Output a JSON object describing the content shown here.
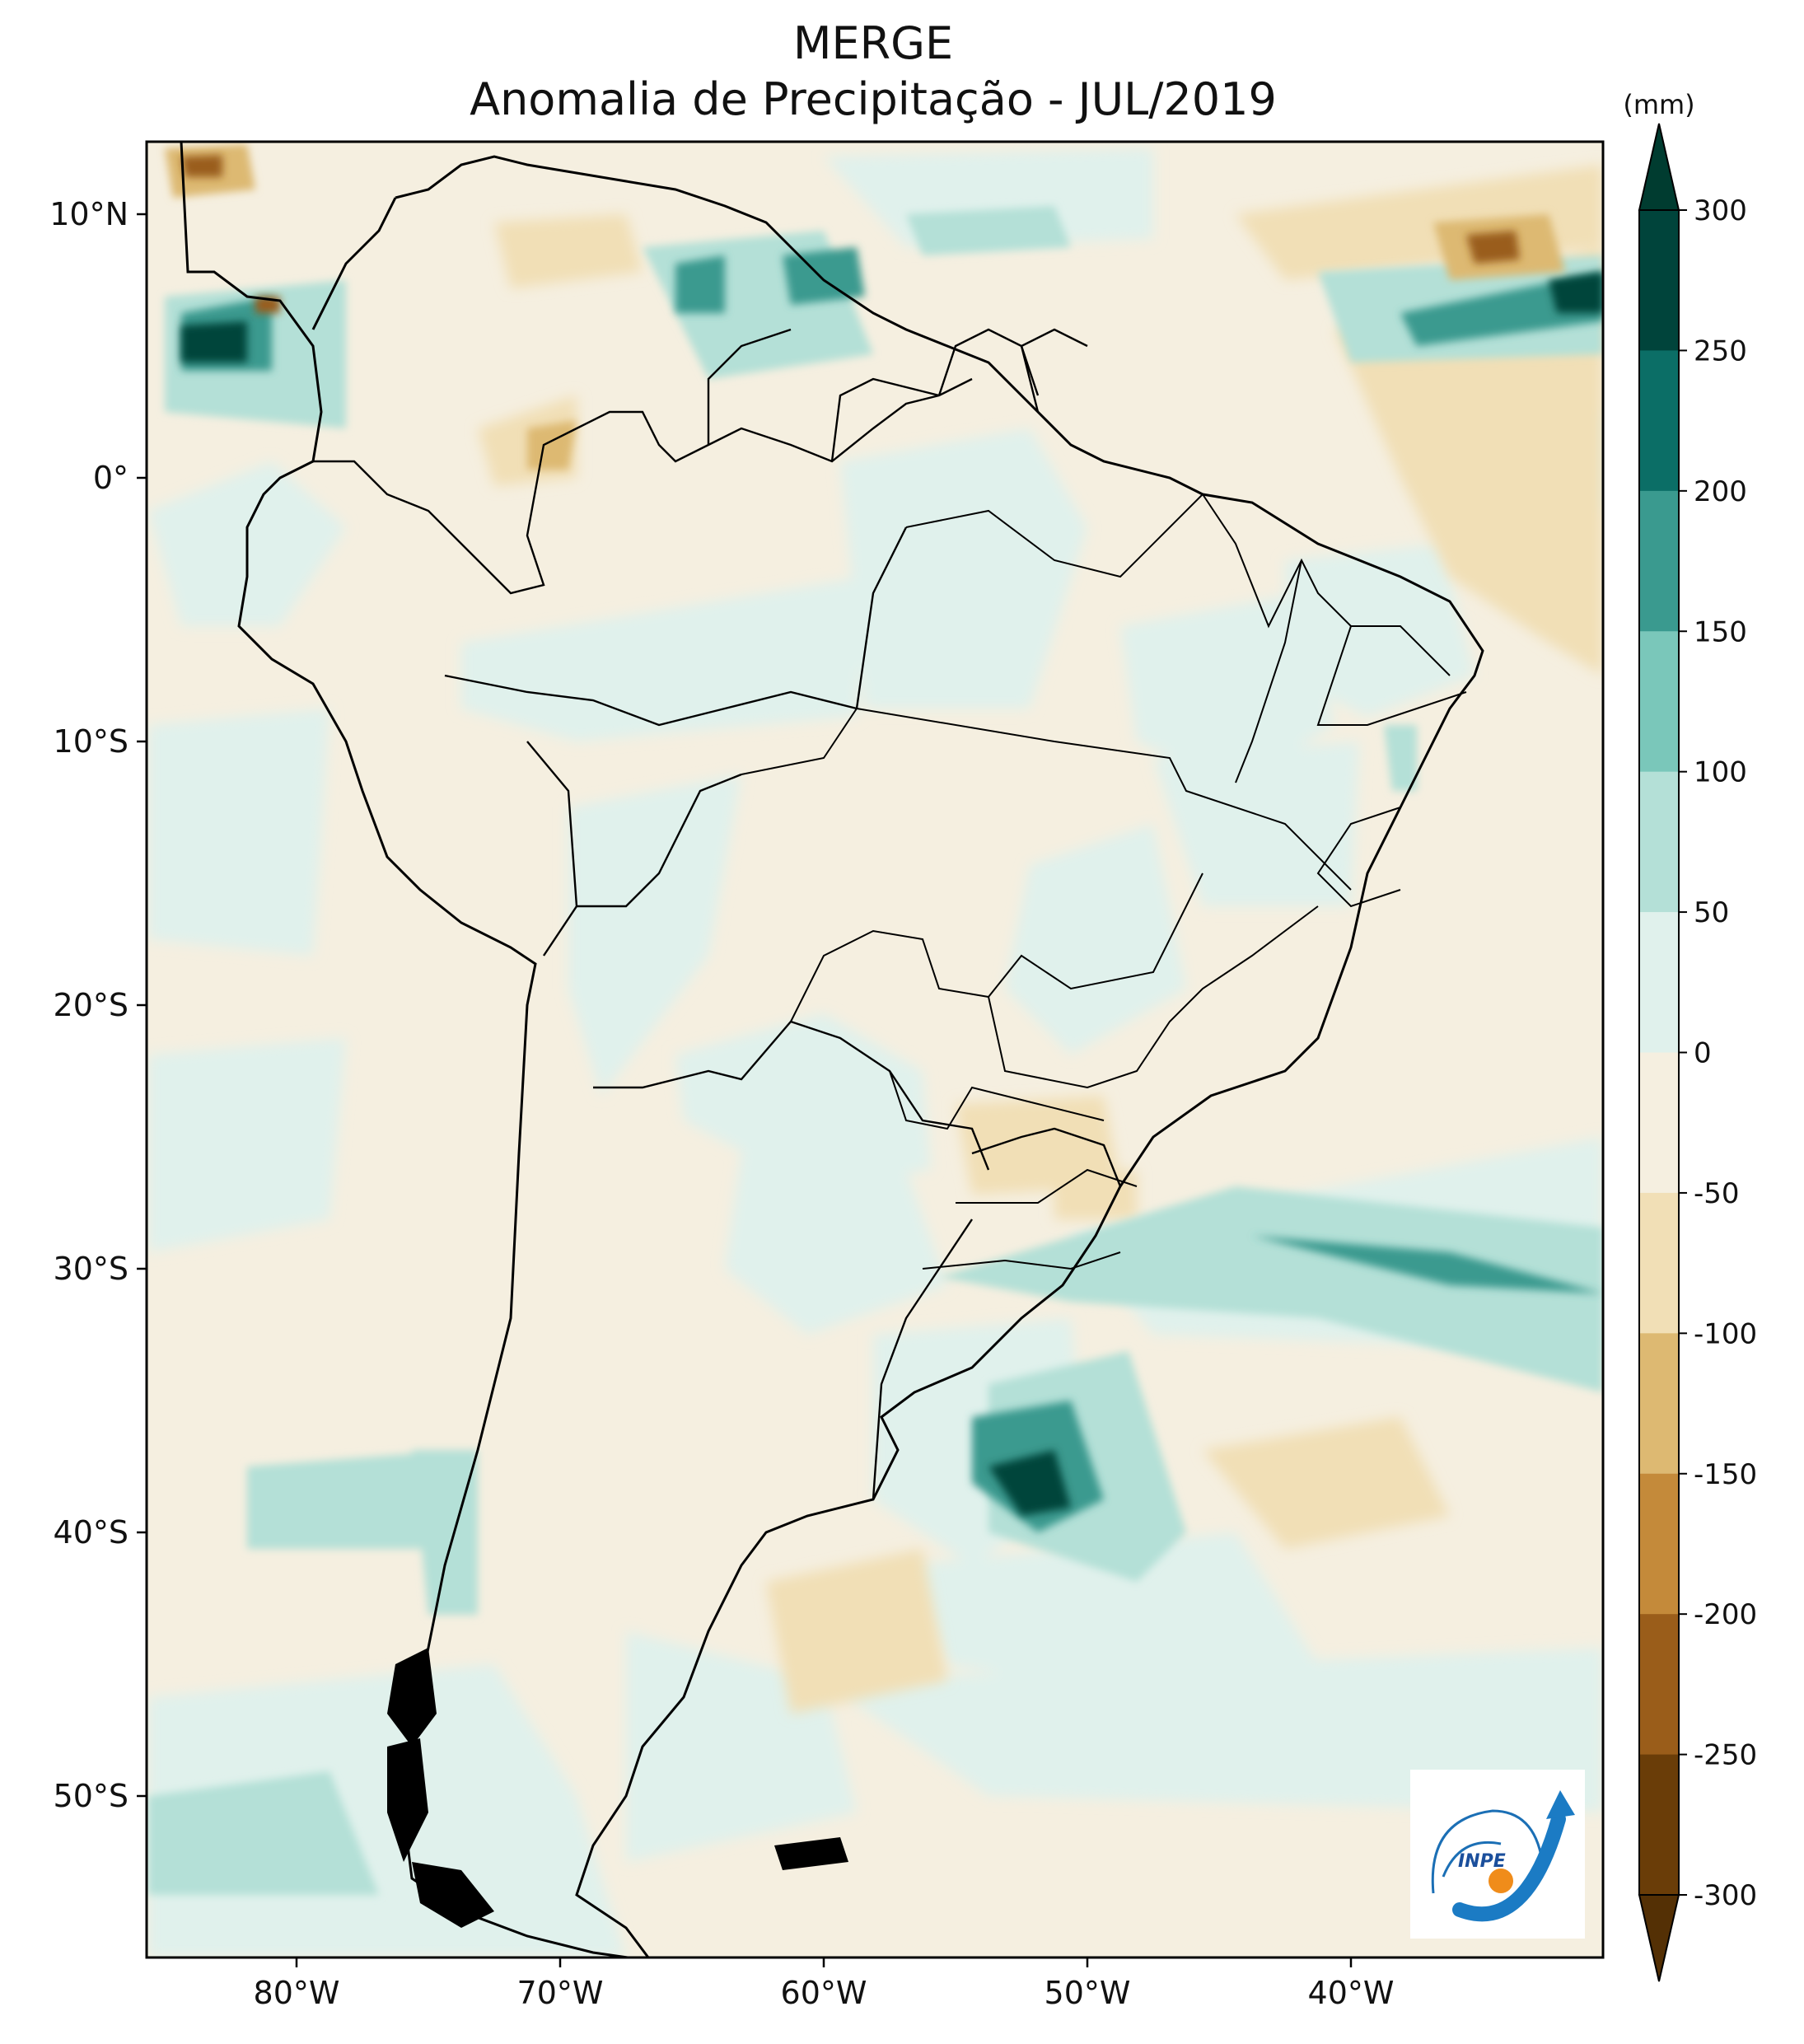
{
  "title": {
    "line1": "MERGE",
    "line2": "Anomalia de Precipitação - JUL/2019"
  },
  "map": {
    "lat_labels": [
      "10°N",
      "0°",
      "10°S",
      "20°S",
      "30°S",
      "40°S",
      "50°S"
    ],
    "lon_labels": [
      "80°W",
      "70°W",
      "60°W",
      "50°W",
      "40°W"
    ]
  },
  "colorbar": {
    "unit": "(mm)",
    "ticks": [
      "300",
      "250",
      "200",
      "150",
      "100",
      "50",
      "0",
      "-50",
      "-100",
      "-150",
      "-200",
      "-250",
      "-300"
    ],
    "colors": [
      "#00443b",
      "#0b6e66",
      "#3a9a8f",
      "#7ac7ba",
      "#b4e0d7",
      "#e0f1ec",
      "#f5efe0",
      "#f1dfb6",
      "#ddb972",
      "#c48a3a",
      "#9a5d1a",
      "#6a3d08",
      "#543005"
    ],
    "over_color": "#003c30",
    "under_color": "#543005"
  },
  "logo": {
    "text": "INPE",
    "icon": "inpe-logo-icon"
  }
}
